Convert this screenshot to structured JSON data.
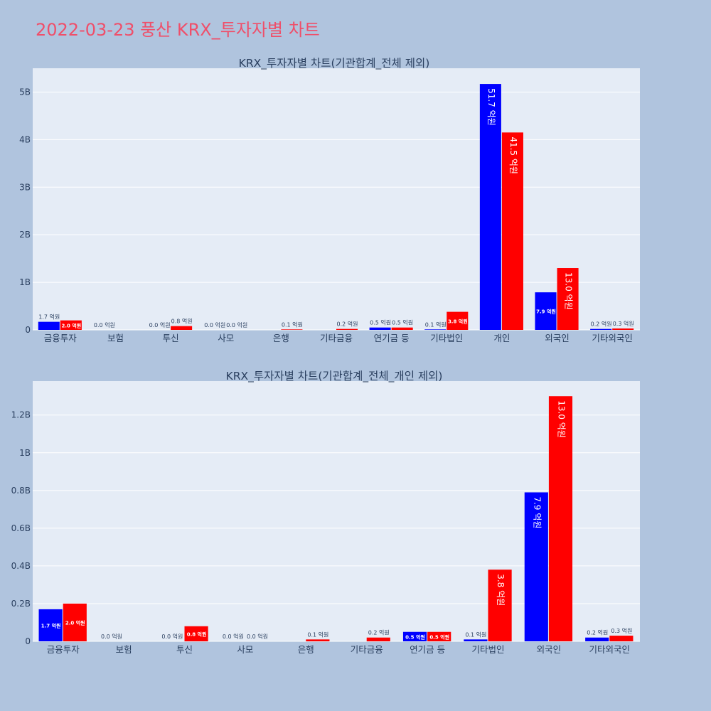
{
  "page": {
    "title": "2022-03-23 풍산 KRX_투자자별 차트",
    "title_color": "#ef4f6a",
    "background": "#b0c4de",
    "plot_background": "#e5ecf6"
  },
  "chart_data": [
    {
      "type": "bar",
      "title": "KRX_투자자별 차트(기관합계_전체 제외)",
      "categories": [
        "금융투자",
        "보험",
        "투신",
        "사모",
        "은행",
        "기타금융",
        "연기금 등",
        "기타법인",
        "개인",
        "외국인",
        "기타외국인"
      ],
      "series": [
        {
          "color": "#0000ff",
          "values": [
            170000000,
            0,
            0,
            0,
            0,
            0,
            50000000,
            10000000,
            5170000000,
            790000000,
            20000000
          ],
          "labels": [
            "1.7 억원",
            "0.0 억원",
            "0.0 억원",
            "0.0 억원",
            "",
            "",
            "0.5 억원",
            "0.1 억원",
            "51.7 억원",
            "7.9 억원",
            "0.2 억원"
          ]
        },
        {
          "color": "#ff0000",
          "values": [
            200000000,
            0,
            80000000,
            0,
            10000000,
            20000000,
            50000000,
            380000000,
            4150000000,
            1300000000,
            30000000
          ],
          "labels": [
            "2.0 억원",
            "",
            "0.8 억원",
            "0.0 억원",
            "0.1 억원",
            "0.2 억원",
            "0.5 억원",
            "3.8 억원",
            "41.5 억원",
            "13.0 억원",
            "0.3 억원"
          ]
        }
      ],
      "ylim": [
        0,
        5500000000
      ],
      "yticks": [
        0,
        1000000000,
        2000000000,
        3000000000,
        4000000000,
        5000000000
      ],
      "ytick_labels": [
        "0",
        "1B",
        "2B",
        "3B",
        "4B",
        "5B"
      ],
      "grid": true
    },
    {
      "type": "bar",
      "title": "KRX_투자자별 차트(기관합계_전체_개인 제외)",
      "categories": [
        "금융투자",
        "보험",
        "투신",
        "사모",
        "은행",
        "기타금융",
        "연기금 등",
        "기타법인",
        "외국인",
        "기타외국인"
      ],
      "series": [
        {
          "color": "#0000ff",
          "values": [
            170000000,
            0,
            0,
            0,
            0,
            0,
            50000000,
            10000000,
            790000000,
            20000000
          ],
          "labels": [
            "1.7 억원",
            "0.0 억원",
            "0.0 억원",
            "0.0 억원",
            "",
            "",
            "0.5 억원",
            "0.1 억원",
            "7.9 억원",
            "0.2 억원"
          ]
        },
        {
          "color": "#ff0000",
          "values": [
            200000000,
            0,
            80000000,
            0,
            10000000,
            20000000,
            50000000,
            380000000,
            1300000000,
            30000000
          ],
          "labels": [
            "2.0 억원",
            "",
            "0.8 억원",
            "0.0 억원",
            "0.1 억원",
            "0.2 억원",
            "0.5 억원",
            "3.8 억원",
            "13.0 억원",
            "0.3 억원"
          ]
        }
      ],
      "ylim": [
        0,
        1380000000
      ],
      "yticks": [
        0,
        200000000,
        400000000,
        600000000,
        800000000,
        1000000000,
        1200000000
      ],
      "ytick_labels": [
        "0",
        "0.2B",
        "0.4B",
        "0.6B",
        "0.8B",
        "1B",
        "1.2B"
      ],
      "grid": true
    }
  ]
}
